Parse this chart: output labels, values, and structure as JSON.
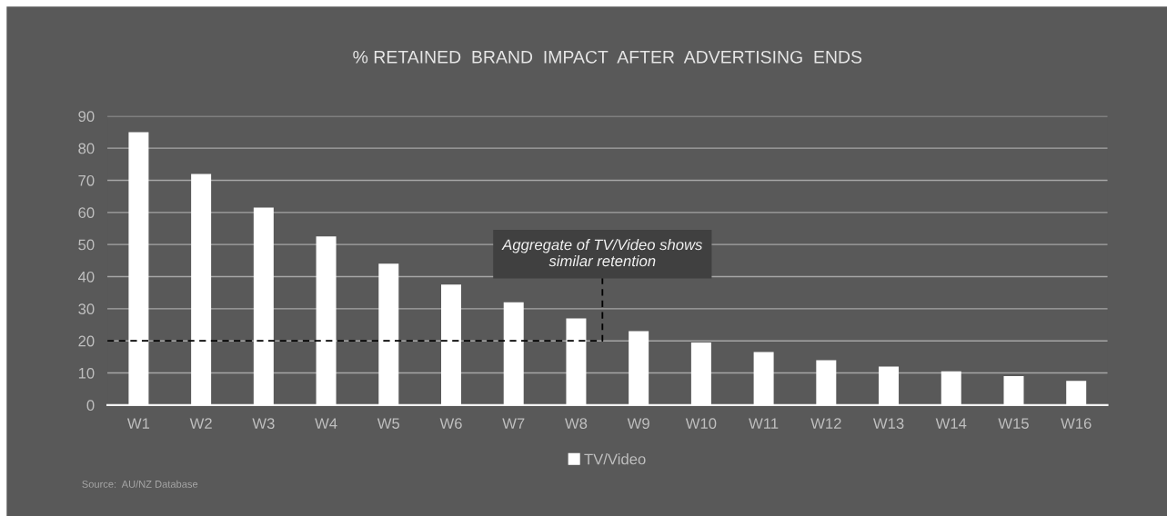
{
  "chart_data": {
    "type": "bar",
    "title": "% RETAINED  BRAND  IMPACT  AFTER  ADVERTISING  ENDS",
    "categories": [
      "W1",
      "W2",
      "W3",
      "W4",
      "W5",
      "W6",
      "W7",
      "W8",
      "W9",
      "W10",
      "W11",
      "W12",
      "W13",
      "W14",
      "W15",
      "W16"
    ],
    "series": [
      {
        "name": "TV/Video",
        "color": "#ffffff",
        "values": [
          85,
          72,
          61.5,
          52.5,
          44,
          37.5,
          32,
          27,
          23,
          19.5,
          16.5,
          14,
          12,
          10.5,
          9,
          7.5
        ]
      }
    ],
    "ylim": [
      0,
      90
    ],
    "yticks": [
      0,
      10,
      20,
      30,
      40,
      50,
      60,
      70,
      80,
      90
    ],
    "grid": "y",
    "legend": "bottom",
    "ref_lines": [
      {
        "axis": "y",
        "value": 20,
        "color": "#000000",
        "line_style": "dashed"
      }
    ],
    "annotations": [
      "Aggregate of TV/Video shows\nsimilar retention",
      "Source:  AU/NZ Database"
    ]
  }
}
